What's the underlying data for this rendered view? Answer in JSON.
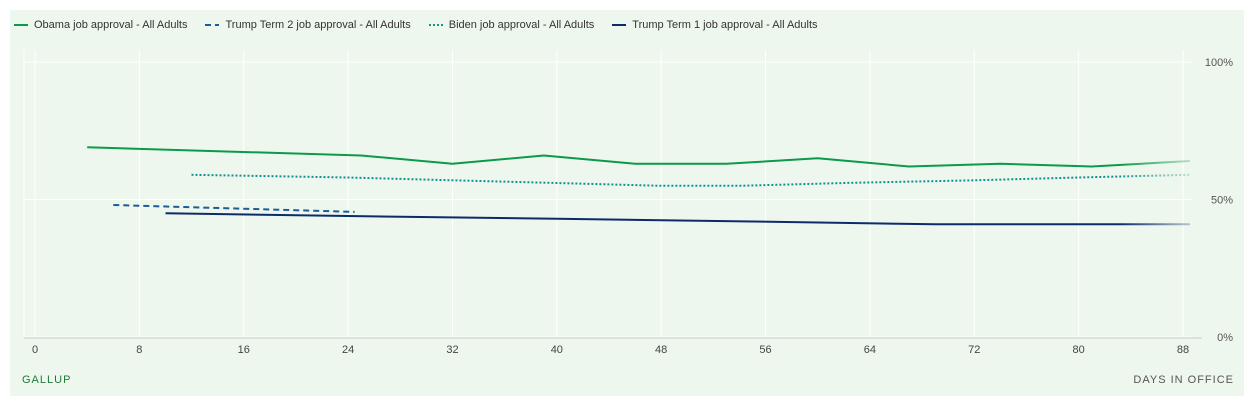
{
  "legend": [
    {
      "label": "Obama job approval - All Adults",
      "color": "#0a9a49",
      "dash": ""
    },
    {
      "label": "Trump Term 2 job approval - All Adults",
      "color": "#1b5d98",
      "dash": "6,4"
    },
    {
      "label": "Biden job approval - All Adults",
      "color": "#14908e",
      "dash": "2,2"
    },
    {
      "label": "Trump Term 1 job approval - All Adults",
      "color": "#0d2b6b",
      "dash": ""
    }
  ],
  "footer": {
    "source": "GALLUP",
    "xlabel": "DAYS IN OFFICE"
  },
  "chart_data": {
    "type": "line",
    "xlabel": "DAYS IN OFFICE",
    "ylabel": "",
    "xlim": [
      0,
      88
    ],
    "ylim": [
      0,
      100
    ],
    "xticks": [
      0,
      8,
      16,
      24,
      32,
      40,
      48,
      56,
      64,
      72,
      80,
      88
    ],
    "yticks": [
      {
        "value": 100,
        "label": "100%"
      },
      {
        "value": 50,
        "label": "50%"
      },
      {
        "value": 0,
        "label": "0%"
      }
    ],
    "grid": true,
    "legend_position": "top-left",
    "series": [
      {
        "name": "Obama job approval - All Adults",
        "color": "#0a9a49",
        "dash": "",
        "x": [
          4,
          25,
          32,
          39,
          46,
          53,
          60,
          67,
          74,
          81,
          89
        ],
        "y": [
          69,
          66,
          63,
          66,
          63,
          63,
          65,
          62,
          63,
          62,
          64
        ]
      },
      {
        "name": "Trump Term 2 job approval - All Adults",
        "color": "#1b5d98",
        "dash": "6,4",
        "x": [
          6,
          24.5
        ],
        "y": [
          48,
          45.5
        ]
      },
      {
        "name": "Biden job approval - All Adults",
        "color": "#14908e",
        "dash": "2,2",
        "x": [
          12,
          24,
          32,
          40,
          48,
          54,
          62,
          72,
          80,
          89
        ],
        "y": [
          59,
          58,
          57,
          56,
          55,
          55,
          56,
          57,
          58,
          59
        ]
      },
      {
        "name": "Trump Term 1 job approval - All Adults",
        "color": "#0d2b6b",
        "dash": "",
        "x": [
          10,
          24,
          40,
          55,
          69,
          78,
          89
        ],
        "y": [
          45,
          44,
          43,
          42,
          41,
          41,
          41
        ]
      }
    ]
  }
}
